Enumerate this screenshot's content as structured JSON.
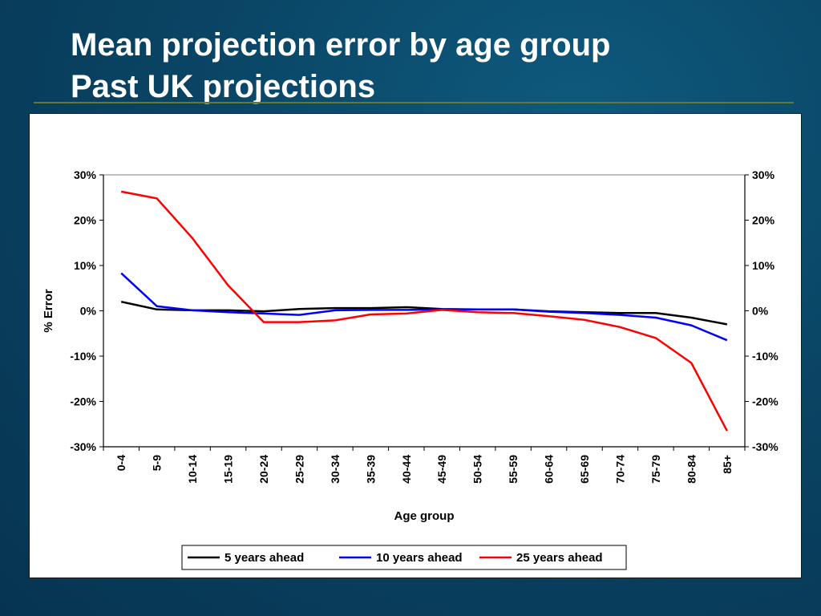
{
  "slide": {
    "title_line1": "Mean projection error by age group",
    "title_line2": "Past UK projections"
  },
  "colors": {
    "background": "#0a4565",
    "rule": "#5f7a3a"
  },
  "chart_data": {
    "type": "line",
    "title": "",
    "xlabel": "Age group",
    "ylabel": "% Error",
    "categories": [
      "0-4",
      "5-9",
      "10-14",
      "15-19",
      "20-24",
      "25-29",
      "30-34",
      "35-39",
      "40-44",
      "45-49",
      "50-54",
      "55-59",
      "60-64",
      "65-69",
      "70-74",
      "75-79",
      "80-84",
      "85+"
    ],
    "ylim": [
      -30,
      30
    ],
    "y_ticks": [
      30,
      20,
      10,
      0,
      -10,
      -20,
      -30
    ],
    "y_tick_labels": [
      "30%",
      "20%",
      "10%",
      "0%",
      "-10%",
      "-20%",
      "-30%"
    ],
    "secondary_y_axis": true,
    "grid": false,
    "legend_position": "bottom",
    "series": [
      {
        "name": "5 years ahead",
        "color": "#000000",
        "values": [
          2.0,
          0.3,
          0.1,
          0.1,
          -0.1,
          0.4,
          0.6,
          0.6,
          0.8,
          0.4,
          0.3,
          0.3,
          -0.1,
          -0.3,
          -0.5,
          -0.5,
          -1.5,
          -3.0
        ]
      },
      {
        "name": "10 years ahead",
        "color": "#0000ff",
        "values": [
          8.3,
          1.0,
          0.1,
          -0.3,
          -0.6,
          -0.9,
          0.1,
          0.2,
          0.2,
          0.3,
          0.3,
          0.3,
          -0.2,
          -0.5,
          -0.9,
          -1.5,
          -3.2,
          -6.5
        ]
      },
      {
        "name": "25 years ahead",
        "color": "#ff0000",
        "values": [
          26.3,
          24.8,
          16.0,
          5.6,
          -2.5,
          -2.5,
          -2.1,
          -0.8,
          -0.6,
          0.2,
          -0.3,
          -0.5,
          -1.2,
          -2.0,
          -3.6,
          -6.0,
          -11.5,
          -26.5
        ]
      }
    ]
  }
}
